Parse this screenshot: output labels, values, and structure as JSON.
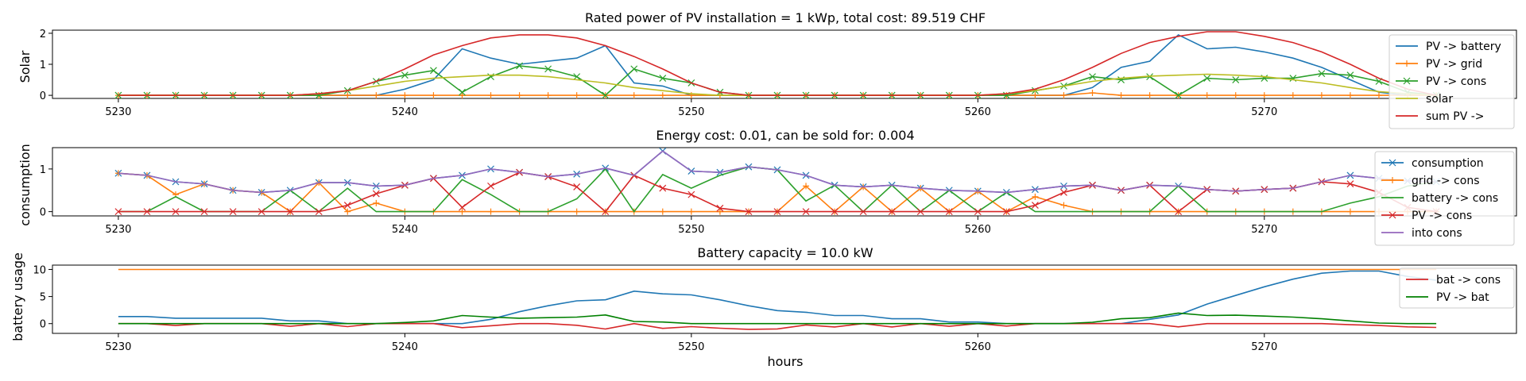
{
  "chart_data": [
    {
      "type": "line",
      "title": "Rated power of PV installation = 1 kWp, total cost: 89.519 CHF",
      "xlabel": "",
      "ylabel": "Solar",
      "xlim": [
        5227.7,
        5278.8
      ],
      "ylim": [
        -0.1,
        2.1
      ],
      "xticks": [
        5230,
        5240,
        5250,
        5260,
        5270
      ],
      "yticks": [
        0,
        1,
        2
      ],
      "grid": false,
      "legend": "right",
      "x": [
        5230,
        5231,
        5232,
        5233,
        5234,
        5235,
        5236,
        5237,
        5238,
        5239,
        5240,
        5241,
        5242,
        5243,
        5244,
        5245,
        5246,
        5247,
        5248,
        5249,
        5250,
        5251,
        5252,
        5253,
        5254,
        5255,
        5256,
        5257,
        5258,
        5259,
        5260,
        5261,
        5262,
        5263,
        5264,
        5265,
        5266,
        5267,
        5268,
        5269,
        5270,
        5271,
        5272,
        5273,
        5274,
        5275,
        5276
      ],
      "series": [
        {
          "name": "PV -> battery",
          "color": "#1f77b4",
          "marker": "none",
          "values": [
            0,
            0,
            0,
            0,
            0,
            0,
            0,
            0,
            0,
            0,
            0.2,
            0.5,
            1.5,
            1.2,
            1.0,
            1.1,
            1.2,
            1.6,
            0.4,
            0.3,
            0,
            0,
            0,
            0,
            0,
            0,
            0,
            0,
            0,
            0,
            0,
            0,
            0,
            0,
            0.25,
            0.9,
            1.1,
            1.95,
            1.5,
            1.55,
            1.4,
            1.2,
            0.9,
            0.5,
            0.1,
            0,
            0
          ]
        },
        {
          "name": "PV -> grid",
          "color": "#ff7f0e",
          "marker": "plus",
          "values": [
            0,
            0,
            0,
            0,
            0,
            0,
            0,
            0,
            0,
            0,
            0,
            0,
            0,
            0,
            0,
            0,
            0,
            0,
            0,
            0,
            0,
            0,
            0,
            0,
            0,
            0,
            0,
            0,
            0,
            0,
            0,
            0,
            0,
            0,
            0.08,
            0,
            0,
            0,
            0,
            0,
            0,
            0,
            0,
            0,
            0,
            0,
            0
          ]
        },
        {
          "name": "PV -> cons",
          "color": "#2ca02c",
          "marker": "x",
          "values": [
            0,
            0,
            0,
            0,
            0,
            0,
            0,
            0,
            0.15,
            0.45,
            0.65,
            0.8,
            0.1,
            0.6,
            0.95,
            0.85,
            0.6,
            0,
            0.85,
            0.55,
            0.4,
            0.1,
            0,
            0,
            0,
            0,
            0,
            0,
            0,
            0,
            0,
            0,
            0.15,
            0.3,
            0.6,
            0.5,
            0.6,
            0,
            0.55,
            0.5,
            0.55,
            0.55,
            0.7,
            0.65,
            0.45,
            0.1,
            0
          ]
        },
        {
          "name": "solar",
          "color": "#bcbd22",
          "marker": "none",
          "values": [
            0,
            0,
            0,
            0,
            0,
            0,
            0,
            0.05,
            0.15,
            0.3,
            0.45,
            0.55,
            0.6,
            0.65,
            0.65,
            0.6,
            0.5,
            0.4,
            0.25,
            0.15,
            0.05,
            0,
            0,
            0,
            0,
            0,
            0,
            0,
            0,
            0,
            0,
            0.05,
            0.15,
            0.3,
            0.45,
            0.55,
            0.62,
            0.65,
            0.68,
            0.65,
            0.6,
            0.5,
            0.4,
            0.25,
            0.12,
            0.05,
            0
          ]
        },
        {
          "name": "sum PV ->",
          "color": "#d62728",
          "marker": "none",
          "values": [
            0,
            0,
            0,
            0,
            0,
            0,
            0,
            0.05,
            0.15,
            0.45,
            0.85,
            1.3,
            1.6,
            1.85,
            1.95,
            1.95,
            1.85,
            1.6,
            1.25,
            0.85,
            0.4,
            0.1,
            0,
            0,
            0,
            0,
            0,
            0,
            0,
            0,
            0,
            0.05,
            0.2,
            0.5,
            0.9,
            1.35,
            1.7,
            1.9,
            2.05,
            2.05,
            1.9,
            1.7,
            1.4,
            1.0,
            0.55,
            0.2,
            0
          ]
        }
      ]
    },
    {
      "type": "line",
      "title": "Energy cost: 0.01, can be sold for: 0.004",
      "xlabel": "",
      "ylabel": "consumption",
      "xlim": [
        5227.7,
        5278.8
      ],
      "ylim": [
        -0.1,
        1.5
      ],
      "xticks": [
        5230,
        5240,
        5250,
        5260,
        5270
      ],
      "yticks": [
        0,
        1
      ],
      "grid": false,
      "legend": "right",
      "x": [
        5230,
        5231,
        5232,
        5233,
        5234,
        5235,
        5236,
        5237,
        5238,
        5239,
        5240,
        5241,
        5242,
        5243,
        5244,
        5245,
        5246,
        5247,
        5248,
        5249,
        5250,
        5251,
        5252,
        5253,
        5254,
        5255,
        5256,
        5257,
        5258,
        5259,
        5260,
        5261,
        5262,
        5263,
        5264,
        5265,
        5266,
        5267,
        5268,
        5269,
        5270,
        5271,
        5272,
        5273,
        5274,
        5275,
        5276
      ],
      "series": [
        {
          "name": "consumption",
          "color": "#1f77b4",
          "marker": "x",
          "values": [
            0.9,
            0.85,
            0.7,
            0.65,
            0.5,
            0.45,
            0.5,
            0.68,
            0.68,
            0.6,
            0.62,
            0.78,
            0.85,
            1.0,
            0.92,
            0.82,
            0.88,
            1.02,
            0.85,
            1.42,
            0.95,
            0.92,
            1.05,
            0.98,
            0.85,
            0.62,
            0.58,
            0.62,
            0.55,
            0.5,
            0.48,
            0.45,
            0.52,
            0.6,
            0.62,
            0.5,
            0.62,
            0.6,
            0.52,
            0.48,
            0.52,
            0.55,
            0.7,
            0.85,
            0.78,
            0.72,
            0.7
          ]
        },
        {
          "name": "grid -> cons",
          "color": "#ff7f0e",
          "marker": "plus",
          "values": [
            0.9,
            0.85,
            0.4,
            0.65,
            0.5,
            0.45,
            0,
            0.68,
            0,
            0.2,
            0,
            0,
            0,
            0,
            0,
            0,
            0,
            0,
            0,
            0,
            0,
            0,
            0,
            0,
            0.6,
            0,
            0.58,
            0,
            0.55,
            0,
            0.48,
            0,
            0.35,
            0.15,
            0,
            0,
            0,
            0,
            0,
            0,
            0,
            0,
            0,
            0,
            0,
            0,
            0
          ]
        },
        {
          "name": "battery -> cons",
          "color": "#2ca02c",
          "marker": "none",
          "values": [
            0,
            0,
            0.35,
            0,
            0,
            0,
            0.5,
            0,
            0.55,
            0,
            0,
            0,
            0.75,
            0.4,
            0,
            0,
            0.3,
            1.0,
            0,
            0.87,
            0.55,
            0.85,
            1.05,
            0.98,
            0.25,
            0.62,
            0,
            0.62,
            0,
            0.5,
            0,
            0.45,
            0,
            0,
            0,
            0,
            0,
            0.6,
            0,
            0,
            0,
            0,
            0,
            0.2,
            0.35,
            0.6,
            0.7
          ]
        },
        {
          "name": "PV -> cons",
          "color": "#d62728",
          "marker": "x",
          "values": [
            0,
            0,
            0,
            0,
            0,
            0,
            0,
            0,
            0.15,
            0.42,
            0.62,
            0.78,
            0.1,
            0.6,
            0.92,
            0.82,
            0.58,
            0,
            0.85,
            0.55,
            0.4,
            0.08,
            0,
            0,
            0,
            0,
            0,
            0,
            0,
            0,
            0,
            0,
            0.15,
            0.45,
            0.62,
            0.5,
            0.62,
            0,
            0.52,
            0.48,
            0.52,
            0.55,
            0.7,
            0.65,
            0.45,
            0.1,
            0
          ]
        },
        {
          "name": "into cons",
          "color": "#9467bd",
          "marker": "none",
          "values": [
            0.9,
            0.85,
            0.7,
            0.65,
            0.5,
            0.45,
            0.5,
            0.68,
            0.68,
            0.6,
            0.62,
            0.78,
            0.85,
            1.0,
            0.92,
            0.82,
            0.88,
            1.02,
            0.85,
            1.42,
            0.95,
            0.92,
            1.05,
            0.98,
            0.85,
            0.62,
            0.58,
            0.62,
            0.55,
            0.5,
            0.48,
            0.45,
            0.52,
            0.6,
            0.62,
            0.5,
            0.62,
            0.6,
            0.52,
            0.48,
            0.52,
            0.55,
            0.7,
            0.85,
            0.78,
            0.72,
            0.7
          ]
        }
      ]
    },
    {
      "type": "line",
      "title": "Battery capacity = 10.0 kW",
      "xlabel": "hours",
      "ylabel": "battery usage",
      "xlim": [
        5227.7,
        5278.8
      ],
      "ylim": [
        -1.8,
        10.8
      ],
      "xticks": [
        5230,
        5240,
        5250,
        5260,
        5270
      ],
      "yticks": [
        0,
        5,
        10
      ],
      "grid": false,
      "legend": "right",
      "x": [
        5230,
        5231,
        5232,
        5233,
        5234,
        5235,
        5236,
        5237,
        5238,
        5239,
        5240,
        5241,
        5242,
        5243,
        5244,
        5245,
        5246,
        5247,
        5248,
        5249,
        5250,
        5251,
        5252,
        5253,
        5254,
        5255,
        5256,
        5257,
        5258,
        5259,
        5260,
        5261,
        5262,
        5263,
        5264,
        5265,
        5266,
        5267,
        5268,
        5269,
        5270,
        5271,
        5272,
        5273,
        5274,
        5275,
        5276
      ],
      "series": [
        {
          "name": "",
          "color": "#1f77b4",
          "marker": "none",
          "values": [
            1.3,
            1.3,
            1.0,
            1.0,
            1.0,
            1.0,
            0.5,
            0.5,
            0,
            0,
            0,
            0,
            0,
            0.8,
            2.2,
            3.3,
            4.2,
            4.4,
            6.0,
            5.5,
            5.3,
            4.4,
            3.3,
            2.4,
            2.1,
            1.5,
            1.5,
            0.9,
            0.9,
            0.3,
            0.3,
            0,
            0,
            0,
            0,
            0,
            0.8,
            1.6,
            3.6,
            5.2,
            6.8,
            8.2,
            9.3,
            9.7,
            9.7,
            8.7,
            8.0
          ]
        },
        {
          "name": "",
          "color": "#ff7f0e",
          "marker": "none",
          "values": [
            10,
            10,
            10,
            10,
            10,
            10,
            10,
            10,
            10,
            10,
            10,
            10,
            10,
            10,
            10,
            10,
            10,
            10,
            10,
            10,
            10,
            10,
            10,
            10,
            10,
            10,
            10,
            10,
            10,
            10,
            10,
            10,
            10,
            10,
            10,
            10,
            10,
            10,
            10,
            10,
            10,
            10,
            10,
            10,
            10,
            10,
            10
          ]
        },
        {
          "name": "bat -> cons",
          "color": "#d62728",
          "marker": "none",
          "values": [
            0,
            0,
            -0.35,
            0,
            0,
            0,
            -0.5,
            0,
            -0.55,
            0,
            0,
            0,
            -0.75,
            -0.4,
            0,
            0,
            -0.3,
            -1.0,
            0,
            -0.87,
            -0.55,
            -0.85,
            -1.05,
            -0.98,
            -0.25,
            -0.62,
            0,
            -0.62,
            0,
            -0.5,
            0,
            -0.45,
            0,
            0,
            0,
            0,
            0,
            -0.6,
            0,
            0,
            0,
            0,
            0,
            -0.2,
            -0.35,
            -0.6,
            -0.7
          ]
        },
        {
          "name": "PV -> bat",
          "color": "#008000",
          "marker": "none",
          "values": [
            0,
            0,
            0,
            0,
            0,
            0,
            0,
            0,
            0,
            0,
            0.2,
            0.5,
            1.5,
            1.2,
            1.0,
            1.1,
            1.2,
            1.6,
            0.4,
            0.3,
            0,
            0,
            0,
            0,
            0,
            0,
            0,
            0,
            0,
            0,
            0,
            0,
            0,
            0,
            0.25,
            0.9,
            1.1,
            1.95,
            1.5,
            1.55,
            1.4,
            1.2,
            0.9,
            0.5,
            0.1,
            0,
            0
          ]
        }
      ]
    }
  ]
}
